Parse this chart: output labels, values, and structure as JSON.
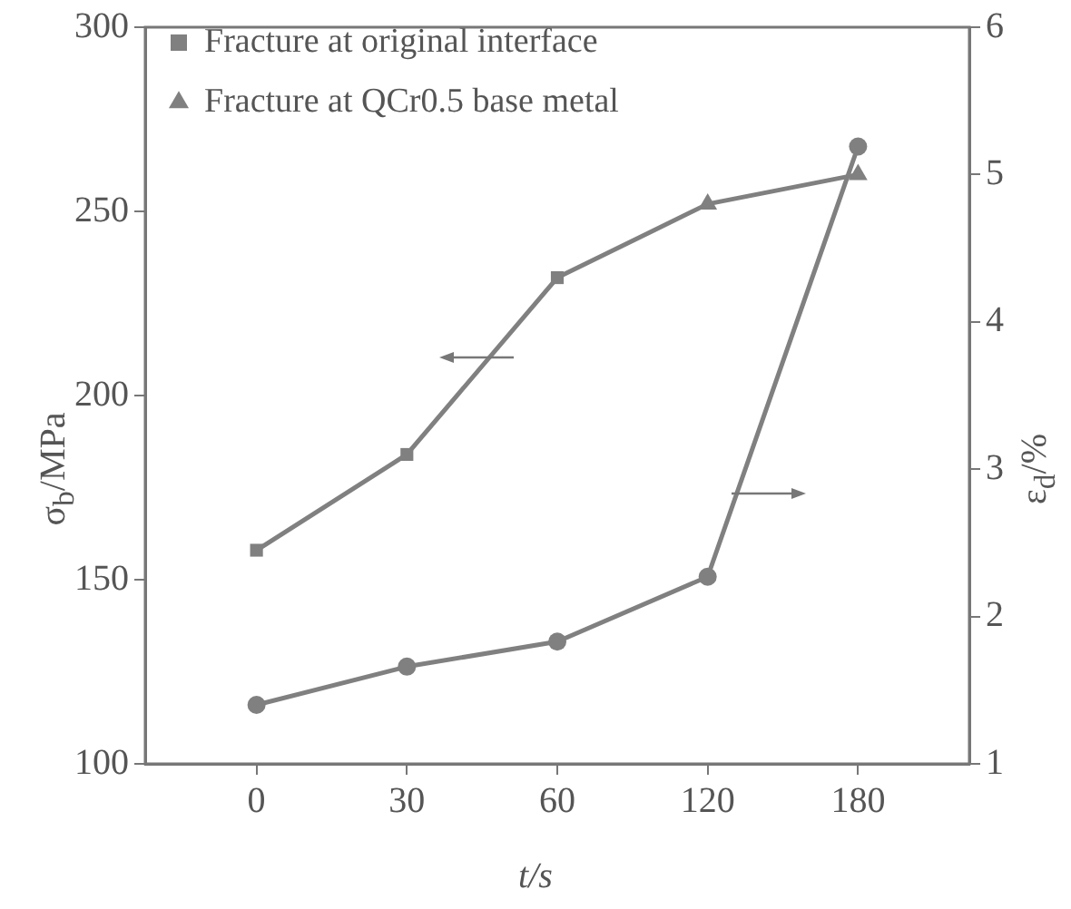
{
  "chart_data": {
    "type": "line",
    "xlabel": "t/s",
    "ylabel": "σ$_{b}$/MPa",
    "y2label": "ε$_{d}$/%",
    "categories": [
      "0",
      "30",
      "60",
      "120",
      "180"
    ],
    "series": [
      {
        "type": "line",
        "color": "#808080",
        "marker": "none",
        "values": [
          158,
          184,
          232,
          252,
          260
        ]
      },
      {
        "type": "scatter",
        "name": "Fracture at original interface",
        "color": "#808080",
        "marker": "square",
        "values": [
          158,
          184,
          232,
          null,
          null
        ]
      },
      {
        "type": "scatter",
        "name": "Fracture at QCr0.5 base metal",
        "color": "#808080",
        "marker": "triangle",
        "values": [
          null,
          null,
          null,
          252,
          260
        ]
      },
      {
        "type": "line",
        "axis": "y2",
        "color": "#808080",
        "marker": "circle",
        "values": [
          1.4,
          1.66,
          1.83,
          2.27,
          5.19
        ]
      }
    ],
    "ylim": [
      100,
      300
    ],
    "yticks": [
      100,
      150,
      200,
      250,
      300
    ],
    "y2lim": [
      1,
      6
    ],
    "y2ticks": [
      1,
      2,
      3,
      4,
      5,
      6
    ],
    "grid": false,
    "legend": "top left"
  }
}
